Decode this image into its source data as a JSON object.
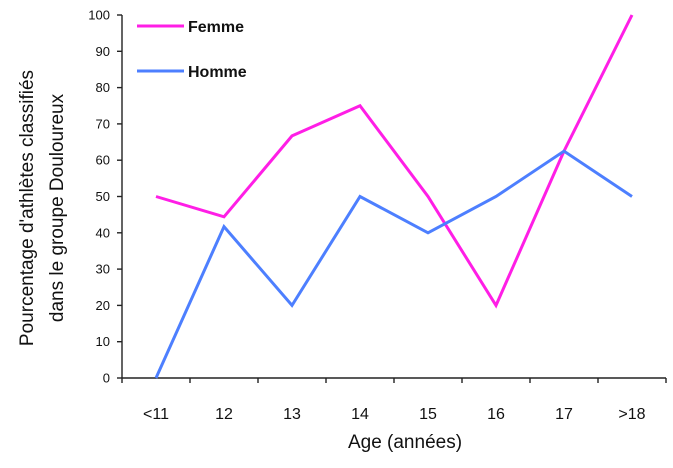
{
  "chart_data": {
    "type": "line",
    "categories": [
      "<11",
      "12",
      "13",
      "14",
      "15",
      "16",
      "17",
      ">18"
    ],
    "series": [
      {
        "name": "Femme",
        "color": "#ff1ee6",
        "values": [
          50,
          44.4,
          66.7,
          75,
          50,
          20,
          62.5,
          100
        ]
      },
      {
        "name": "Homme",
        "color": "#4d7fff",
        "values": [
          0,
          41.7,
          20,
          50,
          40,
          50,
          62.5,
          50
        ]
      }
    ],
    "title": "",
    "xlabel": "Age (années)",
    "ylabel_line1": "Pourcentage d'athlètes classifiés",
    "ylabel_line2": "dans le groupe Douloureux",
    "ylim": [
      0,
      100
    ],
    "yticks": [
      0,
      10,
      20,
      30,
      40,
      50,
      60,
      70,
      80,
      90,
      100
    ],
    "grid": false,
    "legend_position": "top-left"
  }
}
